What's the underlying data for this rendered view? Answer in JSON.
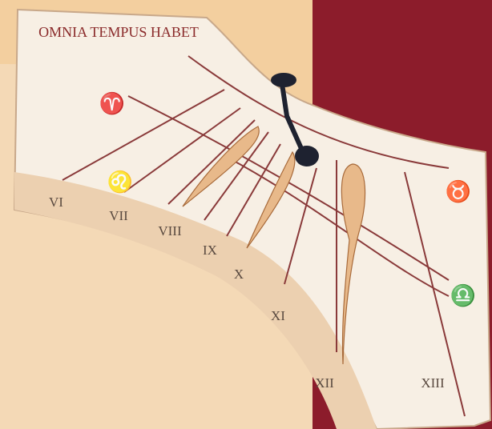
{
  "inscription": "OMNIA TEMPUS HABET",
  "hour_labels": [
    "VI",
    "VII",
    "VIII",
    "IX",
    "X",
    "XI",
    "XII",
    "XIII"
  ],
  "zodiac_signs": [
    "♈",
    "♌",
    "♉",
    "♎"
  ]
}
